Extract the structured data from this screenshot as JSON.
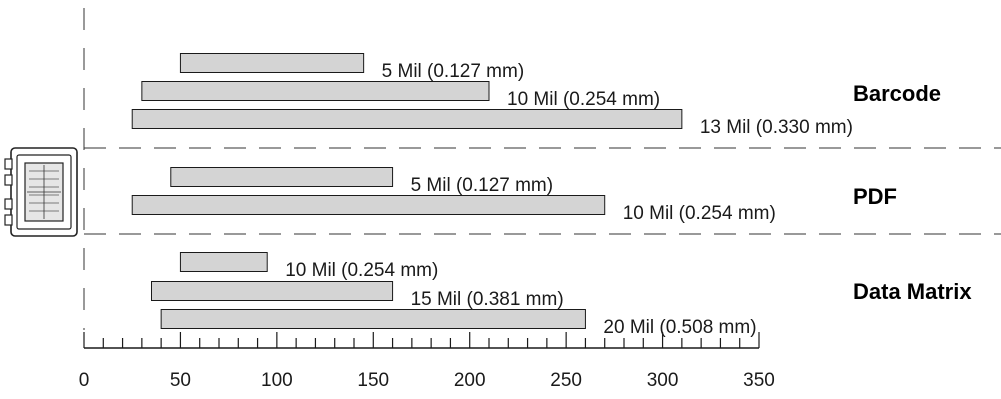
{
  "chart_data": {
    "type": "bar",
    "orientation": "horizontal-range",
    "x_ticks": [
      0,
      50,
      100,
      150,
      200,
      250,
      300,
      350
    ],
    "xlim": [
      0,
      350
    ],
    "groups": [
      {
        "name": "Barcode",
        "bars": [
          {
            "label": "5 Mil (0.127 mm)",
            "start": 50,
            "end": 145
          },
          {
            "label": "10 Mil (0.254 mm)",
            "start": 30,
            "end": 210
          },
          {
            "label": "13 Mil (0.330 mm)",
            "start": 25,
            "end": 310
          }
        ]
      },
      {
        "name": "PDF",
        "bars": [
          {
            "label": "5 Mil (0.127 mm)",
            "start": 45,
            "end": 160
          },
          {
            "label": "10 Mil (0.254 mm)",
            "start": 25,
            "end": 270
          }
        ]
      },
      {
        "name": "Data Matrix",
        "bars": [
          {
            "label": "10 Mil (0.254 mm)",
            "start": 50,
            "end": 95
          },
          {
            "label": "15 Mil (0.381 mm)",
            "start": 35,
            "end": 160
          },
          {
            "label": "20 Mil (0.508 mm)",
            "start": 40,
            "end": 260
          }
        ]
      }
    ],
    "colors": {
      "bar_fill": "#d4d4d4",
      "bar_stroke": "#1a1a1a"
    },
    "icons": [
      "scanner-device-icon"
    ]
  }
}
